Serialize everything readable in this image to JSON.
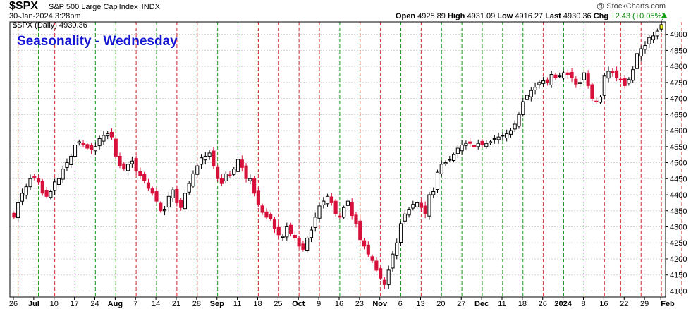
{
  "header": {
    "symbol": "$SPX",
    "name_parts": [
      "S&P 500 Large Cap",
      "Index",
      "INDX"
    ],
    "watermark": "@ StockCharts.com",
    "date": "30-Jan-2024 3:28pm",
    "open_label": "Open",
    "open": "4925.89",
    "high_label": "High",
    "high": "4931.09",
    "low_label": "Low",
    "low": "4916.27",
    "last_label": "Last",
    "last": "4930.36",
    "chg_label": "Chg",
    "chg": "+2.43 (+0.05%)"
  },
  "chart_data": {
    "type": "candlestick",
    "title": "Seasonality - Wednesday",
    "legend": "$SPX (Daily) 4930.36",
    "ylim": [
      4090,
      4930
    ],
    "yticks": [
      4100,
      4150,
      4200,
      4250,
      4300,
      4350,
      4400,
      4450,
      4500,
      4550,
      4600,
      4650,
      4700,
      4750,
      4800,
      4850,
      4900
    ],
    "x_tick_labels": [
      {
        "label": "26",
        "bold": false
      },
      {
        "label": "Jul",
        "bold": true
      },
      {
        "label": "10",
        "bold": false
      },
      {
        "label": "17",
        "bold": false
      },
      {
        "label": "24",
        "bold": false
      },
      {
        "label": "Aug",
        "bold": true
      },
      {
        "label": "7",
        "bold": false
      },
      {
        "label": "14",
        "bold": false
      },
      {
        "label": "21",
        "bold": false
      },
      {
        "label": "28",
        "bold": false
      },
      {
        "label": "Sep",
        "bold": true
      },
      {
        "label": "11",
        "bold": false
      },
      {
        "label": "18",
        "bold": false
      },
      {
        "label": "25",
        "bold": false
      },
      {
        "label": "Oct",
        "bold": true
      },
      {
        "label": "9",
        "bold": false
      },
      {
        "label": "16",
        "bold": false
      },
      {
        "label": "23",
        "bold": false
      },
      {
        "label": "Nov",
        "bold": true
      },
      {
        "label": "6",
        "bold": false
      },
      {
        "label": "13",
        "bold": false
      },
      {
        "label": "20",
        "bold": false
      },
      {
        "label": "27",
        "bold": false
      },
      {
        "label": "Dec",
        "bold": true
      },
      {
        "label": "11",
        "bold": false
      },
      {
        "label": "18",
        "bold": false
      },
      {
        "label": "26",
        "bold": false
      },
      {
        "label": "2024",
        "bold": true
      },
      {
        "label": "8",
        "bold": false
      },
      {
        "label": "16",
        "bold": false
      },
      {
        "label": "22",
        "bold": false
      },
      {
        "label": "29",
        "bold": false
      },
      {
        "label": "Feb",
        "bold": true
      }
    ],
    "wednesday_lines": [
      {
        "color": "red",
        "bar": 1
      },
      {
        "color": "green",
        "bar": 6
      },
      {
        "color": "red",
        "bar": 10
      },
      {
        "color": "green",
        "bar": 15
      },
      {
        "color": "green",
        "bar": 20
      },
      {
        "color": "green",
        "bar": 25
      },
      {
        "color": "red",
        "bar": 30
      },
      {
        "color": "green",
        "bar": 35
      },
      {
        "color": "red",
        "bar": 40
      },
      {
        "color": "red",
        "bar": 45
      },
      {
        "color": "green",
        "bar": 50
      },
      {
        "color": "green",
        "bar": 55
      },
      {
        "color": "red",
        "bar": 60
      },
      {
        "color": "red",
        "bar": 65
      },
      {
        "color": "red",
        "bar": 70
      },
      {
        "color": "red",
        "bar": 75
      },
      {
        "color": "green",
        "bar": 80
      },
      {
        "color": "red",
        "bar": 85
      },
      {
        "color": "red",
        "bar": 90
      },
      {
        "color": "green",
        "bar": 95
      },
      {
        "color": "red",
        "bar": 100
      },
      {
        "color": "green",
        "bar": 105
      },
      {
        "color": "green",
        "bar": 110
      },
      {
        "color": "green",
        "bar": 115
      },
      {
        "color": "green",
        "bar": 120
      },
      {
        "color": "green",
        "bar": 125
      },
      {
        "color": "red",
        "bar": 130
      },
      {
        "color": "green",
        "bar": 135
      },
      {
        "color": "green",
        "bar": 140
      },
      {
        "color": "red",
        "bar": 145
      },
      {
        "color": "red",
        "bar": 149
      },
      {
        "color": "red",
        "bar": 154
      },
      {
        "color": "red",
        "bar": 159
      },
      {
        "color": "red",
        "bar": 164
      },
      {
        "color": "green",
        "bar": 169
      },
      {
        "color": "green",
        "bar": 174
      },
      {
        "color": "red",
        "bar": 179
      }
    ],
    "colors": {
      "up": "#ffffff",
      "down": "#d6113a",
      "up_border": "#000000",
      "red_line": "#d62b2b",
      "green_line": "#1e9a1e",
      "title": "#1414d2"
    },
    "closes": [
      4330,
      4375,
      4405,
      4425,
      4450,
      4455,
      4440,
      4405,
      4395,
      4410,
      4440,
      4450,
      4480,
      4500,
      4520,
      4555,
      4565,
      4555,
      4545,
      4540,
      4550,
      4575,
      4585,
      4590,
      4580,
      4520,
      4490,
      4480,
      4495,
      4505,
      4475,
      4460,
      4445,
      4420,
      4405,
      4380,
      4350,
      4355,
      4395,
      4415,
      4375,
      4360,
      4405,
      4435,
      4465,
      4490,
      4515,
      4520,
      4530,
      4490,
      4450,
      4435,
      4465,
      4460,
      4480,
      4510,
      4485,
      4450,
      4450,
      4405,
      4370,
      4345,
      4330,
      4325,
      4295,
      4275,
      4270,
      4300,
      4280,
      4265,
      4240,
      4230,
      4265,
      4290,
      4330,
      4365,
      4380,
      4395,
      4375,
      4340,
      4330,
      4360,
      4380,
      4335,
      4310,
      4260,
      4240,
      4215,
      4195,
      4165,
      4140,
      4120,
      4165,
      4215,
      4250,
      4310,
      4340,
      4355,
      4370,
      4375,
      4360,
      4340,
      4400,
      4410,
      4470,
      4495,
      4500,
      4510,
      4525,
      4545,
      4555,
      4560,
      4560,
      4550,
      4560,
      4555,
      4560,
      4565,
      4575,
      4580,
      4585,
      4590,
      4600,
      4620,
      4650,
      4690,
      4710,
      4725,
      4735,
      4750,
      4755,
      4750,
      4775,
      4765,
      4770,
      4780,
      4775,
      4765,
      4745,
      4750,
      4780,
      4740,
      4700,
      4690,
      4705,
      4770,
      4785,
      4780,
      4765,
      4760,
      4740,
      4760,
      4790,
      4840,
      4855,
      4865,
      4890,
      4895,
      4910,
      4930
    ]
  }
}
